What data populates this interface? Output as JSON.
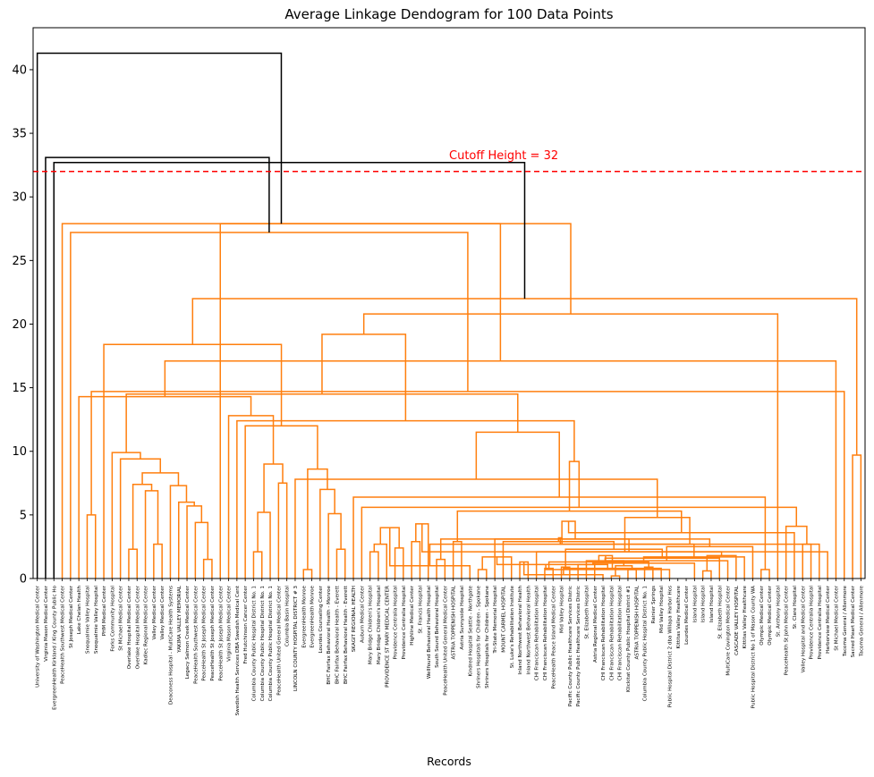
{
  "chart_data": {
    "type": "dendrogram",
    "title": "Average Linkage Dendogram for 100 Data Points",
    "xlabel": "Records",
    "ylabel": "",
    "ylim": [
      0,
      43.3
    ],
    "yticks": [
      0,
      5,
      10,
      15,
      20,
      25,
      30,
      35,
      40
    ],
    "cutoff": {
      "value": 32,
      "label": "Cutoff Height = 32",
      "color": "#ff0000"
    },
    "colors": {
      "above_threshold": "#000000",
      "cluster": "#ff7f0e"
    },
    "leaves": [
      "University of Washington Medical Center",
      "Virginia Mason Medical Center",
      "EvergreenHealth Kirkland / King County Public Ho",
      "PeaceHealth Southwest Medical Center",
      "St Joseph Medical Center",
      "Lake Chelan Health",
      "Snoqualmie Valley Hospital",
      "Snoqualmie Valley Hospital",
      "PHM Medical Center",
      "Forks Community Hospital",
      "St Michael Medical Center",
      "Overlake Hospital Medical Center",
      "Overlake Hospital Medical Center",
      "Kadlec Regional Medical Center",
      "Valley Medical Center",
      "Valley Medical Center",
      "Deaconess Hospital - MultiCare Health Systems",
      "YAKIMA VALLEY MEMORIAL",
      "Legacy Salmon Creek Medical Center",
      "PeaceHealth Southwest Medical Center",
      "PeaceHealth St Joseph Medical Center",
      "PeaceHealth St Joseph Medical Center",
      "PeaceHealth St Joseph Medical Center",
      "Virginia Mason Medical Center",
      "Swedish Health Services DBA Swedish Medical Cent",
      "Fred Hutchinson Cancer Center",
      "Columbia County Public Hospital District No. 1",
      "Columbia County Public Hospital District No. 1",
      "Columbia County Public Hospital District No. 1",
      "PeaceHealth United General Medical Center",
      "Columbia Basin Hospital",
      "LINCOLN COUNTY HOSPITAL DISTRICT # 3",
      "EvergreenHealth Monroe",
      "EvergreenHealth Monroe",
      "Lourdes Counseling Center",
      "BHC Fairfax Behavioral Health - Monroe",
      "BHC Fairfax Behavioral Health - Everett",
      "BHC Fairfax Behavioral Health - Everett",
      "SKAGIT REGIONAL HEALTH",
      "Auburn Medical Center",
      "Mary Bridge Children's Hospital",
      "Mary Bridge Children's Hospital",
      "PROVIDENCE ST MARY MEDICAL CENTER",
      "Providence Centralia Hospital",
      "Providence Centralia Hospital",
      "Highline Medical Center",
      "St. Francis Hospital",
      "Wellfound Behavioral Health Hospital",
      "South Sound Behavioral Hospital",
      "PeaceHealth United General Medical Center",
      "ASTRIA TOPPENISH HOSPITAL",
      "Astria Sunnyside Hospital",
      "Kindred Hospital Seattle - Northgate",
      "Shriners Hospitals for Children - Spokane",
      "Shriners Hospitals for Children - Spokane",
      "Tri-State Memorial Hospital",
      "MOUNT CARMEL HOSPITAL",
      "St. Luke's Rehabilitation Institute",
      "Inland Northwest Behavioral Health",
      "Inland Northwest Behavioral Health",
      "CHI Franciscan Rehabilitation Hospital",
      "CHI Franciscan Rehabilitation Hospital",
      "PeaceHealth Peace Island Medical Center",
      "Mid Valley Hospital",
      "Pacific County Public Healthcare Services Distric",
      "Pacific County Public Healthcare Services Distric",
      "St. Elizabeth Hospital",
      "Astria Regional Medical Center",
      "CHI Franciscan Rehabilitation Hospital",
      "CHI Franciscan Rehabilitation Hospital",
      "CHI Franciscan Rehabilitation Hospital",
      "Klickitat County Public Hospital District #1",
      "ASTRIA TOPPENISH HOSPITAL",
      "Columbia County Public Hospital District No. 1",
      "Rainier Springs",
      "Mid Valley Hospital",
      "Public Hospital District 2 dba Willapa Harbor Hos",
      "Kittitas Valley Healthcare",
      "Lourdes Medical Center",
      "Island Hospital",
      "Island Hospital",
      "Island Hospital",
      "St. Elizabeth Hospital",
      "MultiCare Covington Medical Center",
      "CASCADE VALLEY HOSPITAL",
      "Kittitas Valley Healthcare",
      "Public Hospital District No 1 of Mason County WA",
      "Olympic Medical Center",
      "Olympic Medical Center",
      "St. Anthony Hospital",
      "PeaceHealth St John Medical Center",
      "St. Clare Hospital",
      "Valley Hospital and Medical Center",
      "Providence Centralia Hospital",
      "Providence Centralia Hospital",
      "Harborview Medical Center",
      "St Michael Medical Center",
      "Tacoma General / Allenmore",
      "Sacred Heart Medical Center",
      "Tacoma General / Allenmore"
    ],
    "merges": [
      [
        11,
        12,
        2.3
      ],
      [
        14,
        15,
        2.7
      ],
      [
        13,
        101,
        6.9
      ],
      [
        100,
        102,
        7.4
      ],
      [
        20,
        21,
        1.5
      ],
      [
        19,
        104,
        4.4
      ],
      [
        18,
        105,
        5.7
      ],
      [
        17,
        106,
        6.0
      ],
      [
        16,
        107,
        7.3
      ],
      [
        103,
        108,
        8.3
      ],
      [
        10,
        109,
        9.4
      ],
      [
        9,
        110,
        9.9
      ],
      [
        26,
        27,
        2.1
      ],
      [
        28,
        112,
        5.2
      ],
      [
        29,
        30,
        7.5
      ],
      [
        36,
        37,
        2.3
      ],
      [
        35,
        115,
        5.1
      ],
      [
        34,
        116,
        7.0
      ],
      [
        32,
        33,
        0.7
      ],
      [
        40,
        41,
        2.1
      ],
      [
        43,
        44,
        2.4
      ],
      [
        42,
        119,
        2.7
      ],
      [
        45,
        46,
        2.9
      ],
      [
        120,
        121,
        4.0
      ],
      [
        48,
        49,
        1.5
      ],
      [
        53,
        54,
        0.7
      ],
      [
        52,
        123,
        1.0
      ],
      [
        58,
        59,
        1.3
      ],
      [
        57,
        125,
        1.7
      ],
      [
        61,
        62,
        0.8
      ],
      [
        69,
        70,
        0.2
      ],
      [
        68,
        127,
        0.3
      ],
      [
        67,
        128,
        1.1
      ],
      [
        71,
        72,
        0.7
      ],
      [
        73,
        74,
        0.9
      ],
      [
        131,
        75,
        0.8
      ],
      [
        132,
        76,
        0.7
      ],
      [
        130,
        133,
        1.0
      ],
      [
        129,
        134,
        1.3
      ],
      [
        63,
        64,
        0.9
      ],
      [
        136,
        65,
        1.1
      ],
      [
        66,
        137,
        1.4
      ],
      [
        135,
        138,
        1.8
      ],
      [
        80,
        81,
        0.6
      ],
      [
        79,
        140,
        1.2
      ],
      [
        141,
        82,
        1.6
      ],
      [
        83,
        142,
        1.4
      ],
      [
        143,
        84,
        1.8
      ],
      [
        144,
        85,
        1.7
      ],
      [
        139,
        145,
        2.3
      ],
      [
        86,
        146,
        2.5
      ],
      [
        60,
        147,
        2.1
      ],
      [
        148,
        126,
        2.7
      ],
      [
        149,
        56,
        2.9
      ],
      [
        124,
        150,
        3.1
      ],
      [
        55,
        151,
        3.1
      ],
      [
        50,
        51,
        2.9
      ],
      [
        153,
        152,
        3.2
      ],
      [
        47,
        122,
        4.3
      ],
      [
        154,
        155,
        4.5
      ],
      [
        92,
        93,
        2.7
      ],
      [
        94,
        157,
        2.7
      ],
      [
        95,
        158,
        2.1
      ],
      [
        91,
        159,
        3.6
      ],
      [
        90,
        160,
        4.1
      ],
      [
        87,
        88,
        0.7
      ],
      [
        162,
        161,
        4.8
      ],
      [
        156,
        163,
        5.3
      ],
      [
        39,
        164,
        5.6
      ],
      [
        38,
        165,
        6.4
      ],
      [
        31,
        166,
        7.8
      ],
      [
        117,
        118,
        8.6
      ],
      [
        167,
        168,
        9.2
      ],
      [
        113,
        114,
        9.0
      ],
      [
        169,
        170,
        11.5
      ],
      [
        25,
        171,
        12.0
      ],
      [
        24,
        172,
        12.4
      ],
      [
        23,
        173,
        12.8
      ],
      [
        111,
        174,
        14.5
      ],
      [
        8,
        175,
        18.4
      ],
      [
        6,
        7,
        5.0
      ],
      [
        5,
        177,
        14.3
      ],
      [
        178,
        176,
        19.2
      ],
      [
        98,
        99,
        9.7
      ],
      [
        97,
        180,
        14.7
      ],
      [
        96,
        181,
        17.1
      ],
      [
        89,
        182,
        20.8
      ],
      [
        179,
        183,
        22.0
      ],
      [
        4,
        184,
        27.2
      ],
      [
        3,
        185,
        27.9
      ],
      [
        186,
        22,
        27.9
      ],
      [
        187,
        2,
        32.7
      ],
      [
        1,
        188,
        33.1
      ],
      [
        0,
        189,
        41.3
      ]
    ],
    "notes": "Leaves are 100 hospital records; merge heights read from the y axis; above-cutoff links drawn black, cluster links orange."
  }
}
